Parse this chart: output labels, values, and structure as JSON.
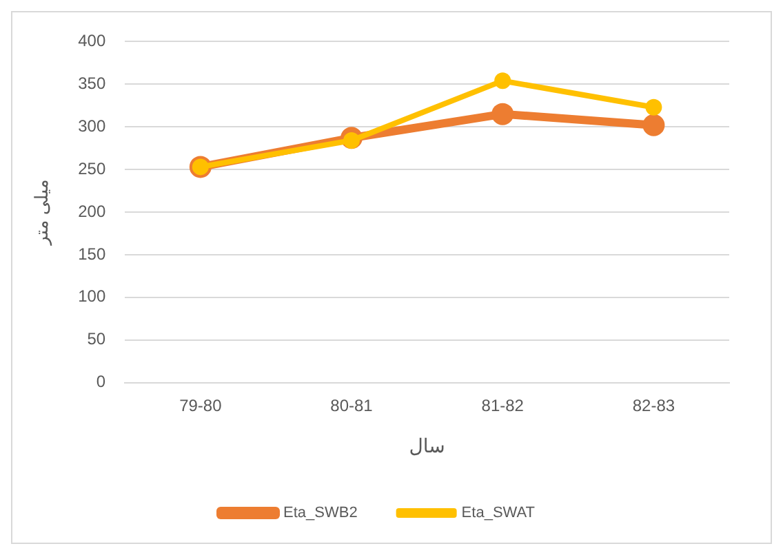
{
  "chart_data": {
    "type": "line",
    "xlabel": "سال",
    "ylabel": "میلی متر",
    "categories": [
      "79-80",
      "80-81",
      "81-82",
      "82-83"
    ],
    "series": [
      {
        "name": "Eta_SWB2",
        "color": "#ed7d31",
        "values": [
          253,
          287,
          315,
          302
        ]
      },
      {
        "name": "Eta_SWAT",
        "color": "#ffc000",
        "values": [
          253,
          284,
          354,
          323
        ]
      }
    ],
    "ylim": [
      0,
      400
    ],
    "yticks": [
      0,
      50,
      100,
      150,
      200,
      250,
      300,
      350,
      400
    ],
    "grid": "y",
    "legend": "bottom",
    "marker": "circle",
    "line_style": "solid"
  }
}
